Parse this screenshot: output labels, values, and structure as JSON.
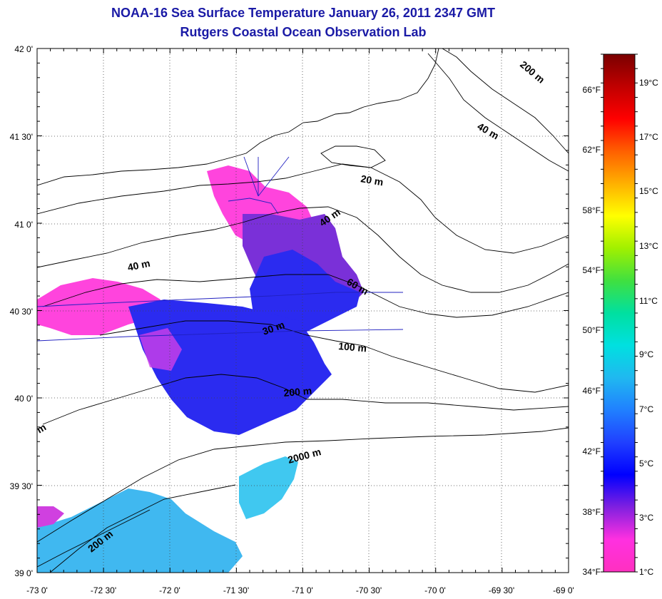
{
  "title": {
    "line1": "NOAA-16 Sea Surface Temperature January 26, 2011 2347 GMT",
    "line2": "Rutgers Coastal Ocean Observation Lab"
  },
  "map": {
    "lat_labels": [
      "42 0'",
      "41 30'",
      "41 0'",
      "40 30'",
      "40 0'",
      "39 30'",
      "39 0'"
    ],
    "lon_labels": [
      "-73 0'",
      "-72 30'",
      "-72 0'",
      "-71 30'",
      "-71 0'",
      "-70 30'",
      "-70 0'",
      "-69 30'",
      "-69 0'"
    ],
    "depth_labels": [
      "200 m",
      "40 m",
      "20 m",
      "40 m",
      "40 m",
      "60 m",
      "30 m",
      "100 m",
      "200 m",
      "2000 m",
      "200 m",
      "m"
    ]
  },
  "colorbar": {
    "celsius": [
      "19°C",
      "17°C",
      "15°C",
      "13°C",
      "11°C",
      "9°C",
      "7°C",
      "5°C",
      "3°C",
      "1°C"
    ],
    "fahrenheit": [
      "66°F",
      "62°F",
      "58°F",
      "54°F",
      "50°F",
      "46°F",
      "42°F",
      "38°F",
      "34°F"
    ],
    "gradient_colors": [
      "#7a0000",
      "#c00000",
      "#ff0000",
      "#ff6000",
      "#ffb000",
      "#ffff00",
      "#a0f000",
      "#40e040",
      "#00e0a0",
      "#00e0e0",
      "#20b8f0",
      "#2080ff",
      "#2040ff",
      "#0000ff",
      "#8020e0",
      "#ff30e0",
      "#ff30c0"
    ]
  }
}
